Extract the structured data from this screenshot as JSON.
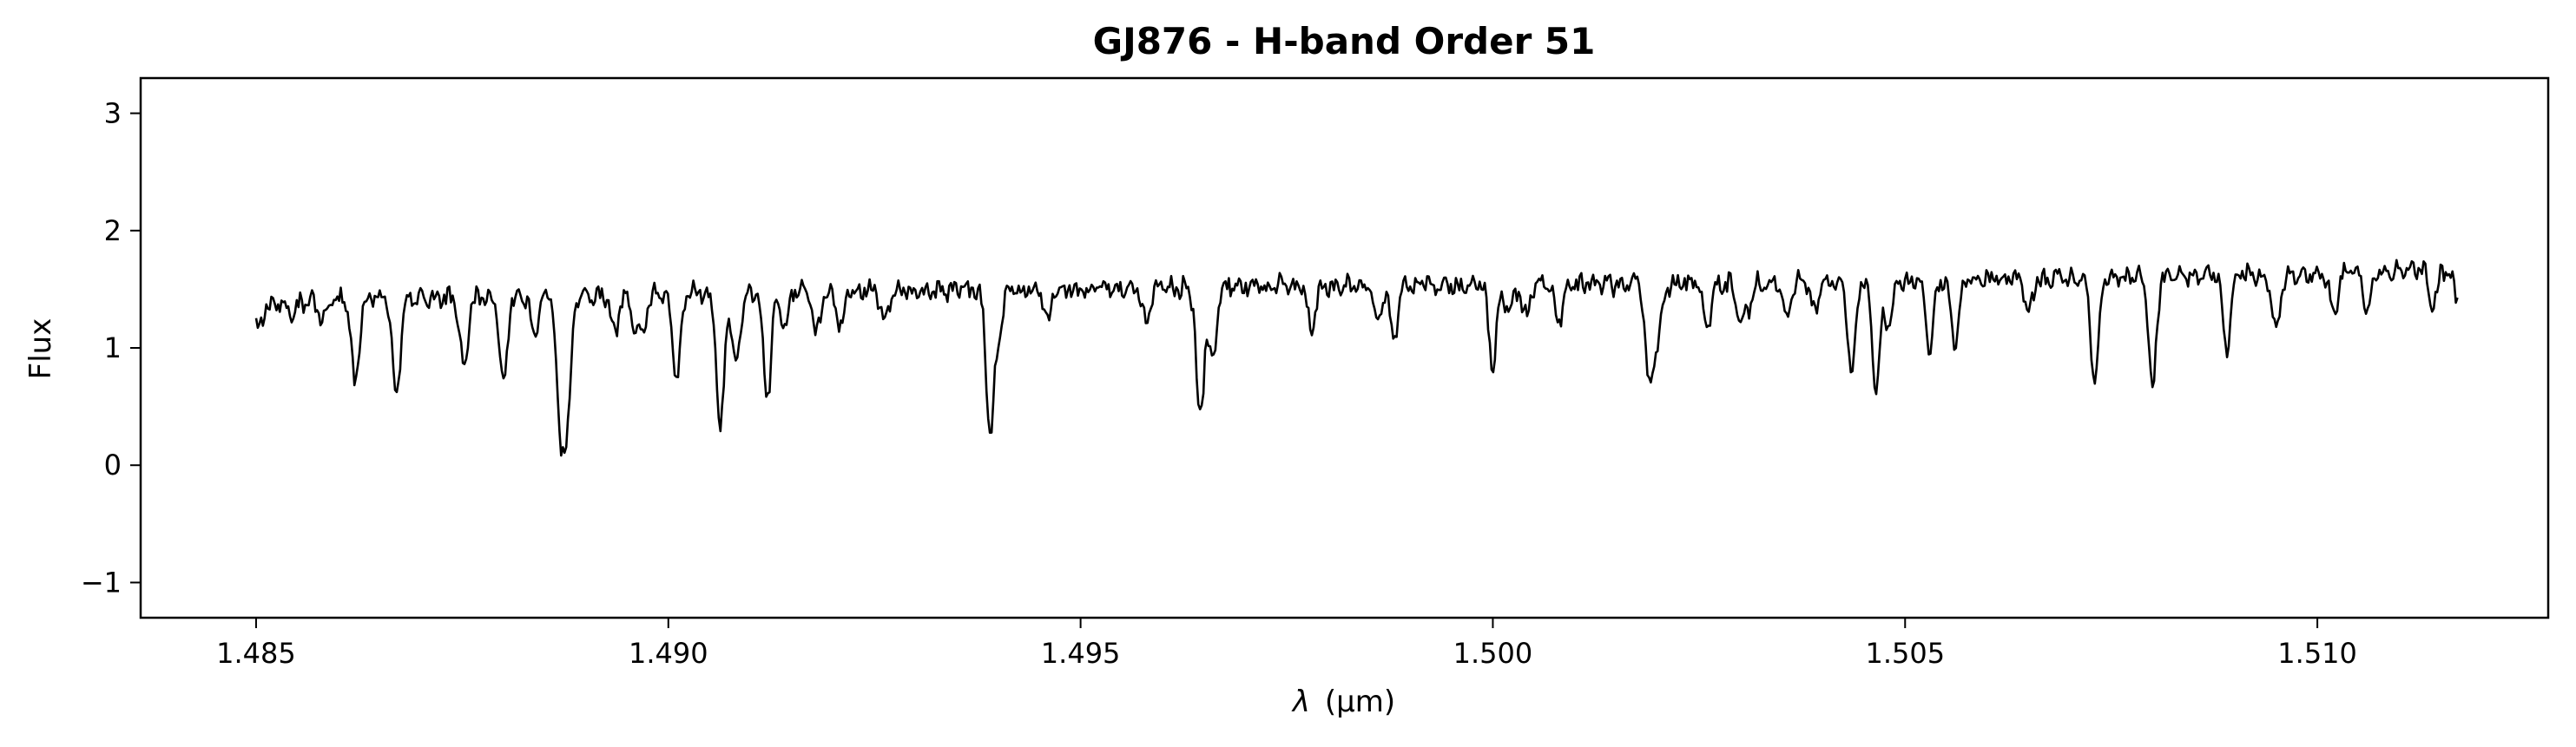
{
  "chart_data": {
    "type": "line",
    "title": "GJ876 - H-band Order 51",
    "xlabel_symbol": "λ",
    "xlabel_unit": "(μm)",
    "ylabel": "Flux",
    "xlim": [
      1.4836,
      1.5128
    ],
    "ylim": [
      -1.3,
      3.3
    ],
    "xticks": [
      1.485,
      1.49,
      1.495,
      1.5,
      1.505,
      1.51
    ],
    "xtick_labels": [
      "1.485",
      "1.490",
      "1.495",
      "1.500",
      "1.505",
      "1.510"
    ],
    "yticks": [
      -1,
      0,
      1,
      2,
      3
    ],
    "ytick_labels": [
      "−1",
      "0",
      "1",
      "2",
      "3"
    ],
    "grid": false,
    "series": [
      {
        "color": "#000000",
        "continuum": [
          [
            1.485,
            1.38
          ],
          [
            1.487,
            1.42
          ],
          [
            1.489,
            1.45
          ],
          [
            1.491,
            1.47
          ],
          [
            1.493,
            1.49
          ],
          [
            1.495,
            1.5
          ],
          [
            1.497,
            1.52
          ],
          [
            1.499,
            1.54
          ],
          [
            1.501,
            1.54
          ],
          [
            1.503,
            1.55
          ],
          [
            1.505,
            1.56
          ],
          [
            1.507,
            1.6
          ],
          [
            1.509,
            1.62
          ],
          [
            1.51,
            1.63
          ],
          [
            1.5117,
            1.67
          ]
        ],
        "absorption_lines": [
          {
            "x": 1.48503,
            "depth": 0.24
          },
          {
            "x": 1.48543,
            "depth": 0.12
          },
          {
            "x": 1.4858,
            "depth": 0.15
          },
          {
            "x": 1.4862,
            "depth": 0.72
          },
          {
            "x": 1.4867,
            "depth": 0.85
          },
          {
            "x": 1.48752,
            "depth": 0.62
          },
          {
            "x": 1.48838,
            "depth": 0.36
          },
          {
            "x": 1.48869,
            "depth": 1.16
          },
          {
            "x": 1.48878,
            "depth": 0.95
          },
          {
            "x": 1.48935,
            "depth": 0.32
          },
          {
            "x": 1.4896,
            "depth": 0.3
          },
          {
            "x": 1.4901,
            "depth": 0.76
          },
          {
            "x": 1.49063,
            "depth": 1.18
          },
          {
            "x": 1.49082,
            "depth": 0.62
          },
          {
            "x": 1.4912,
            "depth": 0.9
          },
          {
            "x": 1.4914,
            "depth": 0.3
          },
          {
            "x": 1.4918,
            "depth": 0.35
          },
          {
            "x": 1.49209,
            "depth": 0.3
          },
          {
            "x": 1.49262,
            "depth": 0.22
          },
          {
            "x": 1.4939,
            "depth": 1.2
          },
          {
            "x": 1.494,
            "depth": 0.4
          },
          {
            "x": 1.4946,
            "depth": 0.25
          },
          {
            "x": 1.4958,
            "depth": 0.3
          },
          {
            "x": 1.49645,
            "depth": 1.14
          },
          {
            "x": 1.4966,
            "depth": 0.64
          },
          {
            "x": 1.4978,
            "depth": 0.35
          },
          {
            "x": 1.4986,
            "depth": 0.32
          },
          {
            "x": 1.5,
            "depth": 0.72
          },
          {
            "x": 1.5004,
            "depth": 0.28
          },
          {
            "x": 1.5008,
            "depth": 0.3
          },
          {
            "x": 1.5019,
            "depth": 0.25
          },
          {
            "x": 1.502,
            "depth": 0.42
          },
          {
            "x": 1.5026,
            "depth": 0.35
          },
          {
            "x": 1.503,
            "depth": 0.3
          },
          {
            "x": 1.50356,
            "depth": 0.27
          },
          {
            "x": 1.5039,
            "depth": 0.22
          },
          {
            "x": 1.50435,
            "depth": 0.82
          },
          {
            "x": 1.50465,
            "depth": 0.92
          },
          {
            "x": 1.5048,
            "depth": 0.4
          },
          {
            "x": 1.5053,
            "depth": 0.6
          },
          {
            "x": 1.5056,
            "depth": 0.55
          },
          {
            "x": 1.5065,
            "depth": 0.3
          },
          {
            "x": 1.5073,
            "depth": 0.9
          },
          {
            "x": 1.508,
            "depth": 0.95
          },
          {
            "x": 1.5089,
            "depth": 0.65
          },
          {
            "x": 1.5095,
            "depth": 0.5
          },
          {
            "x": 1.5106,
            "depth": 0.3
          },
          {
            "x": 1.5114,
            "depth": 0.32
          },
          {
            "x": 1.5117,
            "depth": 0.27
          },
          {
            "x": 1.488,
            "depth": 0.75
          },
          {
            "x": 1.4988,
            "depth": 0.45
          },
          {
            "x": 1.4897,
            "depth": 0.28
          },
          {
            "x": 1.5019,
            "depth": 0.6
          },
          {
            "x": 1.5002,
            "depth": 0.25
          },
          {
            "x": 1.5102,
            "depth": 0.35
          },
          {
            "x": 1.5031,
            "depth": 0.2
          }
        ],
        "noise_amplitude": 0.05,
        "x_start": 1.485,
        "x_end": 1.5117,
        "n_points": 1300
      }
    ]
  }
}
